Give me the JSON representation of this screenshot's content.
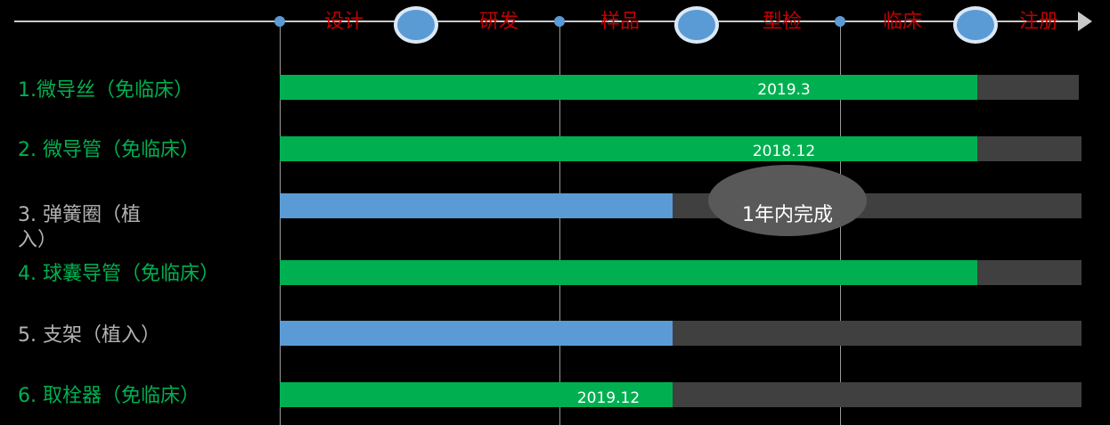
{
  "colors": {
    "complete": "#00b050",
    "in_progress": "#5b9bd5",
    "remaining": "#404040",
    "stage_text": "#c00000"
  },
  "stages": [
    "设计",
    "研发",
    "样品",
    "型检",
    "临床",
    "注册"
  ],
  "rows": [
    {
      "label": "1.微导丝（免临床）",
      "label_color": "green",
      "progress": 0.87,
      "status": "complete",
      "date": "2019.3"
    },
    {
      "label": "2. 微导管（免临床）",
      "label_color": "green",
      "progress": 0.87,
      "status": "complete",
      "date": "2018.12"
    },
    {
      "label": "3. 弹簧圈（植入）",
      "label_color": "gray",
      "progress": 0.49,
      "status": "in_progress",
      "date": ""
    },
    {
      "label": "4. 球囊导管（免临床）",
      "label_color": "green",
      "progress": 0.87,
      "status": "complete",
      "date": ""
    },
    {
      "label": "5. 支架（植入）",
      "label_color": "gray",
      "progress": 0.49,
      "status": "in_progress",
      "date": ""
    },
    {
      "label": "6. 取栓器（免临床）",
      "label_color": "green",
      "progress": 0.49,
      "status": "complete",
      "date": "2019.12"
    }
  ],
  "callout": "1年内完成",
  "chart_data": {
    "type": "bar",
    "categories": [
      "1.微导丝（免临床）",
      "2. 微导管（免临床）",
      "3. 弹簧圈（植入）",
      "4. 球囊导管（免临床）",
      "5. 支架（植入）",
      "6. 取栓器（免临床）"
    ],
    "values": [
      0.87,
      0.87,
      0.49,
      0.87,
      0.49,
      0.49
    ],
    "x_ticks": [
      "设计",
      "研发",
      "样品",
      "型检",
      "临床",
      "注册"
    ],
    "annotations": [
      "2019.3",
      "2018.12",
      "2019.12",
      "1年内完成"
    ],
    "xlim": [
      0,
      1
    ],
    "grid": true
  }
}
